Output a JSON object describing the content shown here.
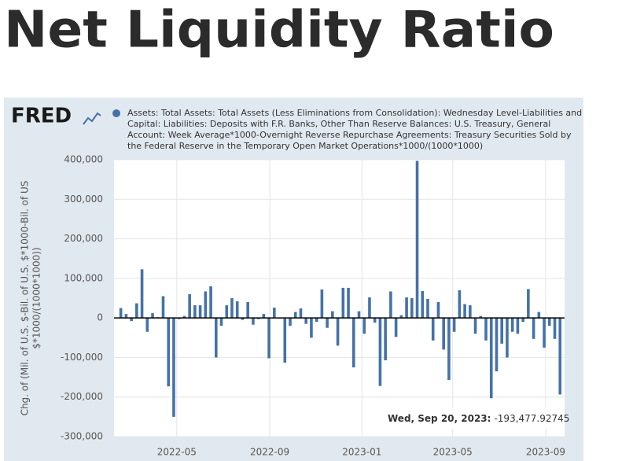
{
  "page": {
    "title": "Net Liquidity Ratio"
  },
  "chart_data": {
    "type": "bar",
    "logo": "FRED",
    "ylabel": [
      "Chg. of (Mil. of U.S. $-Bil. of U.S. $*1000-Bil. of US",
      "$*1000/(1000*1000))"
    ],
    "annotation": {
      "date": "Wed, Sep 20, 2023:",
      "value": "-193,477.92745"
    },
    "x": [
      "2022-02-16",
      "2022-02-23",
      "2022-03-02",
      "2022-03-09",
      "2022-03-16",
      "2022-03-23",
      "2022-03-30",
      "2022-04-06",
      "2022-04-13",
      "2022-04-20",
      "2022-04-27",
      "2022-05-04",
      "2022-05-11",
      "2022-05-18",
      "2022-05-25",
      "2022-06-01",
      "2022-06-08",
      "2022-06-15",
      "2022-06-22",
      "2022-06-29",
      "2022-07-06",
      "2022-07-13",
      "2022-07-20",
      "2022-07-27",
      "2022-08-03",
      "2022-08-10",
      "2022-08-17",
      "2022-08-24",
      "2022-08-31",
      "2022-09-07",
      "2022-09-14",
      "2022-09-21",
      "2022-09-28",
      "2022-10-05",
      "2022-10-12",
      "2022-10-19",
      "2022-10-26",
      "2022-11-02",
      "2022-11-09",
      "2022-11-16",
      "2022-11-23",
      "2022-11-30",
      "2022-12-07",
      "2022-12-14",
      "2022-12-21",
      "2022-12-28",
      "2023-01-04",
      "2023-01-11",
      "2023-01-18",
      "2023-01-25",
      "2023-02-01",
      "2023-02-08",
      "2023-02-15",
      "2023-02-22",
      "2023-03-01",
      "2023-03-08",
      "2023-03-15",
      "2023-03-22",
      "2023-03-29",
      "2023-04-05",
      "2023-04-12",
      "2023-04-19",
      "2023-04-26",
      "2023-05-03",
      "2023-05-10",
      "2023-05-17",
      "2023-05-24",
      "2023-05-31",
      "2023-06-07",
      "2023-06-14",
      "2023-06-21",
      "2023-06-28",
      "2023-07-05",
      "2023-07-12",
      "2023-07-19",
      "2023-07-26",
      "2023-08-02",
      "2023-08-09",
      "2023-08-16",
      "2023-08-23",
      "2023-08-30",
      "2023-09-06",
      "2023-09-13",
      "2023-09-20"
    ],
    "series": [
      {
        "name": "Assets: Total Assets: Total Assets (Less Eliminations from Consolidation): Wednesday Level-Liabilities and Capital: Liabilities: Deposits with F.R. Banks, Other Than Reserve Balances: U.S. Treasury, General Account: Week Average*1000-Overnight Reverse Repurchase Agreements: Treasury Securities Sold by the Federal Reserve in the Temporary Open Market Operations*1000/(1000*1000)",
        "color": "#4572a7",
        "values": [
          25000,
          10000,
          -8000,
          37000,
          123000,
          -35000,
          12000,
          2000,
          55000,
          -173000,
          -250000,
          -3000,
          5000,
          60000,
          32000,
          32000,
          67000,
          80000,
          -100000,
          -20000,
          32000,
          50000,
          42000,
          -5000,
          40000,
          -17000,
          -3000,
          10000,
          -102000,
          26000,
          -2000,
          -113000,
          -20000,
          15000,
          24000,
          -15000,
          -50000,
          -10000,
          72000,
          -25000,
          17000,
          -70000,
          76000,
          76000,
          -125000,
          17000,
          -40000,
          52000,
          -12000,
          -172000,
          -107000,
          67000,
          -48000,
          7000,
          52000,
          50000,
          397000,
          68000,
          48000,
          -57000,
          40000,
          -80000,
          -157000,
          -35000,
          70000,
          35000,
          32000,
          -40000,
          5000,
          -57000,
          -203000,
          -135000,
          -65000,
          -100000,
          -35000,
          -40000,
          -10000,
          73000,
          -53000,
          15000,
          -75000,
          -20000,
          -53000,
          -193477.92745
        ]
      }
    ],
    "xlim": [
      "2022-02-07",
      "2023-09-26"
    ],
    "xticks": [
      {
        "value": "2022-05-01",
        "label": "2022-05"
      },
      {
        "value": "2022-09-01",
        "label": "2022-09"
      },
      {
        "value": "2023-01-01",
        "label": "2023-01"
      },
      {
        "value": "2023-05-01",
        "label": "2023-05"
      },
      {
        "value": "2023-09-01",
        "label": "2023-09"
      }
    ],
    "ylim": [
      -300000,
      400000
    ],
    "yticks": [
      {
        "value": -300000,
        "label": "-300,000"
      },
      {
        "value": -200000,
        "label": "-200,000"
      },
      {
        "value": -100000,
        "label": "-100,000"
      },
      0,
      {
        "value": 100000,
        "label": "100,000"
      },
      {
        "value": 200000,
        "label": "200,000"
      },
      {
        "value": 300000,
        "label": "300,000"
      },
      {
        "value": 400000,
        "label": "400,000"
      }
    ],
    "grid": true
  }
}
